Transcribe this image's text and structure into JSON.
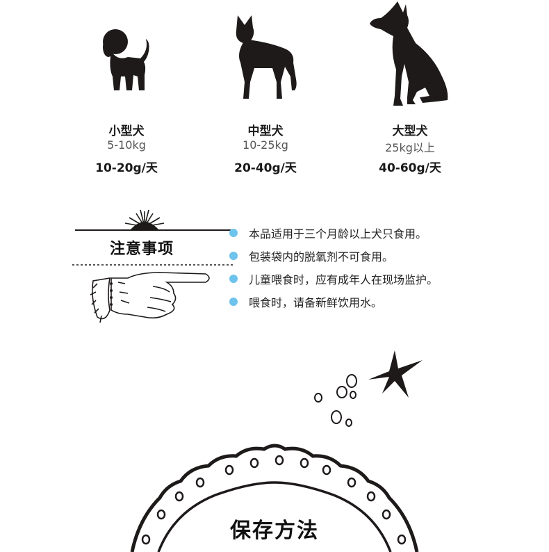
{
  "dogs": [
    {
      "name": "小型犬",
      "weight": "5-10kg",
      "feed": "10-20g/天"
    },
    {
      "name": "中型犬",
      "weight": "10-25kg",
      "feed": "20-40g/天"
    },
    {
      "name": "大型犬",
      "weight": "25kg以上",
      "feed": "40-60g/天"
    }
  ],
  "notice": {
    "title": "注意事项",
    "items": [
      "本品适用于三个月龄以上犬只食用。",
      "包装袋内的脱氧剂不可食用。",
      "儿童喂食时，应有成年人在现场监护。",
      "喂食时，请备新鲜饮用水。"
    ],
    "bullet_color": "#6ec3ec"
  },
  "storage": {
    "title": "保存方法"
  }
}
